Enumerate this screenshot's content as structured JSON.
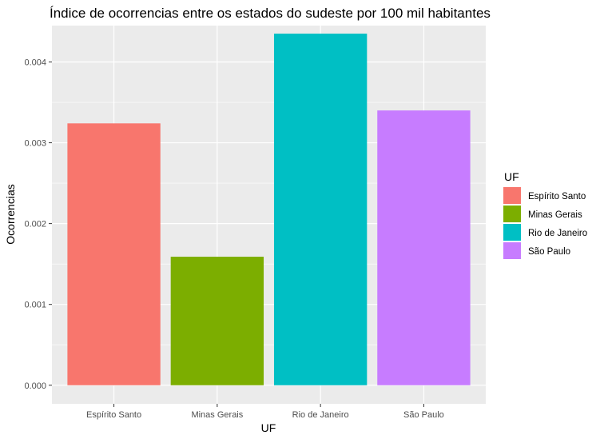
{
  "chart_data": {
    "type": "bar",
    "title": "Índice de ocorrencias entre os estados do sudeste por 100 mil habitantes",
    "xlabel": "UF",
    "ylabel": "Ocorrencias",
    "categories": [
      "Espírito Santo",
      "Minas Gerais",
      "Rio de Janeiro",
      "São Paulo"
    ],
    "values": [
      0.00324,
      0.00159,
      0.00435,
      0.0034
    ],
    "colors": [
      "#F8766D",
      "#7CAE00",
      "#00BFC4",
      "#C77CFF"
    ],
    "ylim": [
      -0.00023,
      0.00445
    ],
    "yticks": [
      0.0,
      0.001,
      0.002,
      0.003,
      0.004
    ],
    "ytick_labels": [
      "0.000",
      "0.001",
      "0.002",
      "0.003",
      "0.004"
    ],
    "grid": true,
    "panel_background": "#EBEBEB",
    "legend": {
      "title": "UF",
      "position": "right",
      "entries": [
        "Espírito Santo",
        "Minas Gerais",
        "Rio de Janeiro",
        "São Paulo"
      ]
    }
  }
}
